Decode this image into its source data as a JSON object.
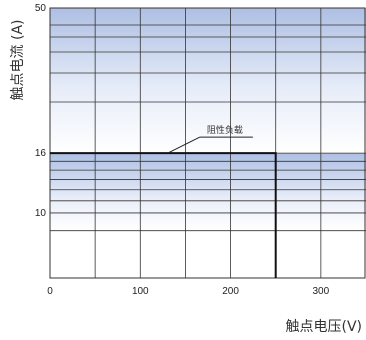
{
  "chart_data": {
    "type": "line",
    "title": "",
    "xlabel": "触点电压(V)",
    "ylabel": "触点电流 (A)",
    "x_ticks": [
      "0",
      "100",
      "200",
      "300"
    ],
    "y_ticks": [
      "10",
      "16",
      "50"
    ],
    "xlim": [
      0,
      350
    ],
    "ylim": [
      6,
      50
    ],
    "y_scale": "log",
    "grid": true,
    "series": [
      {
        "name": "阻性负载",
        "points": [
          [
            0,
            16
          ],
          [
            250,
            16
          ],
          [
            250,
            6
          ]
        ]
      }
    ],
    "annotations": [
      {
        "text": "阻性负载",
        "points_to": [
          125,
          16
        ]
      }
    ],
    "colors": {
      "band_dark": "#b6c6e6",
      "band_light": "#f3f6fc",
      "line": "#111111",
      "grid": "#333333"
    }
  }
}
